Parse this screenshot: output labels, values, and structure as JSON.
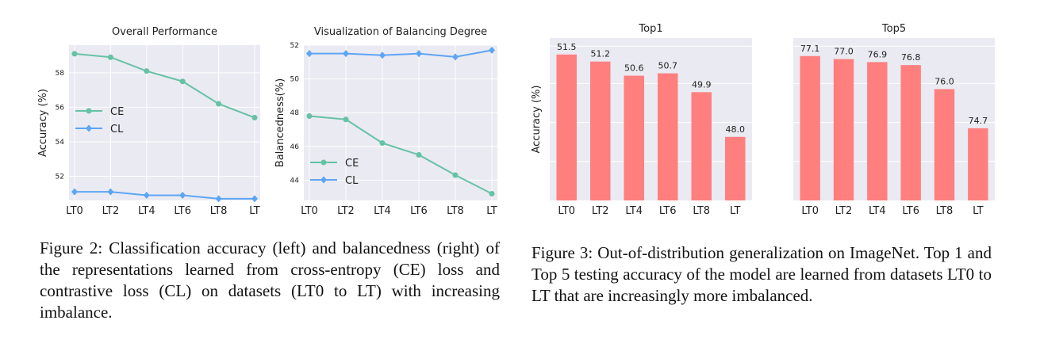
{
  "chart_data": [
    {
      "type": "line",
      "title": "Overall Performance",
      "ylabel": "Accuracy (%)",
      "xlabel": "",
      "categories": [
        "LT0",
        "LT2",
        "LT4",
        "LT6",
        "LT8",
        "LT"
      ],
      "ylim": [
        50.6,
        59.6
      ],
      "yticks": [
        52,
        54,
        56,
        58
      ],
      "grid": true,
      "legend": "center-left",
      "series": [
        {
          "name": "CE",
          "color": "#66c2a5",
          "marker": "circle",
          "values": [
            59.1,
            58.9,
            58.1,
            57.5,
            56.2,
            55.4
          ]
        },
        {
          "name": "CL",
          "color": "#5da5f5",
          "marker": "diamond",
          "values": [
            51.1,
            51.1,
            50.9,
            50.9,
            50.7,
            50.7
          ]
        }
      ]
    },
    {
      "type": "line",
      "title": "Visualization of Balancing Degree",
      "ylabel": "Balancedness(%)",
      "xlabel": "",
      "categories": [
        "LT0",
        "LT2",
        "LT4",
        "LT6",
        "LT8",
        "LT"
      ],
      "ylim": [
        42.8,
        52.0
      ],
      "yticks": [
        44,
        46,
        48,
        50,
        52
      ],
      "grid": true,
      "legend": "lower-left",
      "series": [
        {
          "name": "CE",
          "color": "#66c2a5",
          "marker": "circle",
          "values": [
            47.8,
            47.6,
            46.2,
            45.5,
            44.3,
            43.2
          ]
        },
        {
          "name": "CL",
          "color": "#5da5f5",
          "marker": "diamond",
          "values": [
            51.5,
            51.5,
            51.4,
            51.5,
            51.3,
            51.7
          ]
        }
      ]
    },
    {
      "type": "bar",
      "title": "Top1",
      "ylabel": "Accuracy (%)",
      "xlabel": "",
      "categories": [
        "LT0",
        "LT2",
        "LT4",
        "LT6",
        "LT8",
        "LT"
      ],
      "values": [
        51.5,
        51.2,
        50.6,
        50.7,
        49.9,
        48.0
      ],
      "value_labels": [
        "51.5",
        "51.2",
        "50.6",
        "50.7",
        "49.9",
        "48.0"
      ],
      "ylim": [
        45.3,
        52.2
      ],
      "grid": true,
      "color": "#ff7f7f"
    },
    {
      "type": "bar",
      "title": "Top5",
      "ylabel": "",
      "xlabel": "",
      "categories": [
        "LT0",
        "LT2",
        "LT4",
        "LT6",
        "LT8",
        "LT"
      ],
      "values": [
        77.1,
        77.0,
        76.9,
        76.8,
        76.0,
        74.7
      ],
      "value_labels": [
        "77.1",
        "77.0",
        "76.9",
        "76.8",
        "76.0",
        "74.7"
      ],
      "ylim": [
        72.3,
        77.7
      ],
      "grid": true,
      "color": "#ff7f7f"
    }
  ],
  "captions": {
    "figure2": "Figure 2: Classification accuracy (left) and balancedness (right) of the representations learned from cross-entropy (CE) loss and contrastive loss (CL) on datasets (LT0 to LT) with increasing imbalance.",
    "figure3": "Figure 3: Out-of-distribution generalization on ImageNet. Top 1 and Top 5 testing accuracy of the model are learned from datasets LT0 to LT that are increasingly more imbalanced."
  }
}
